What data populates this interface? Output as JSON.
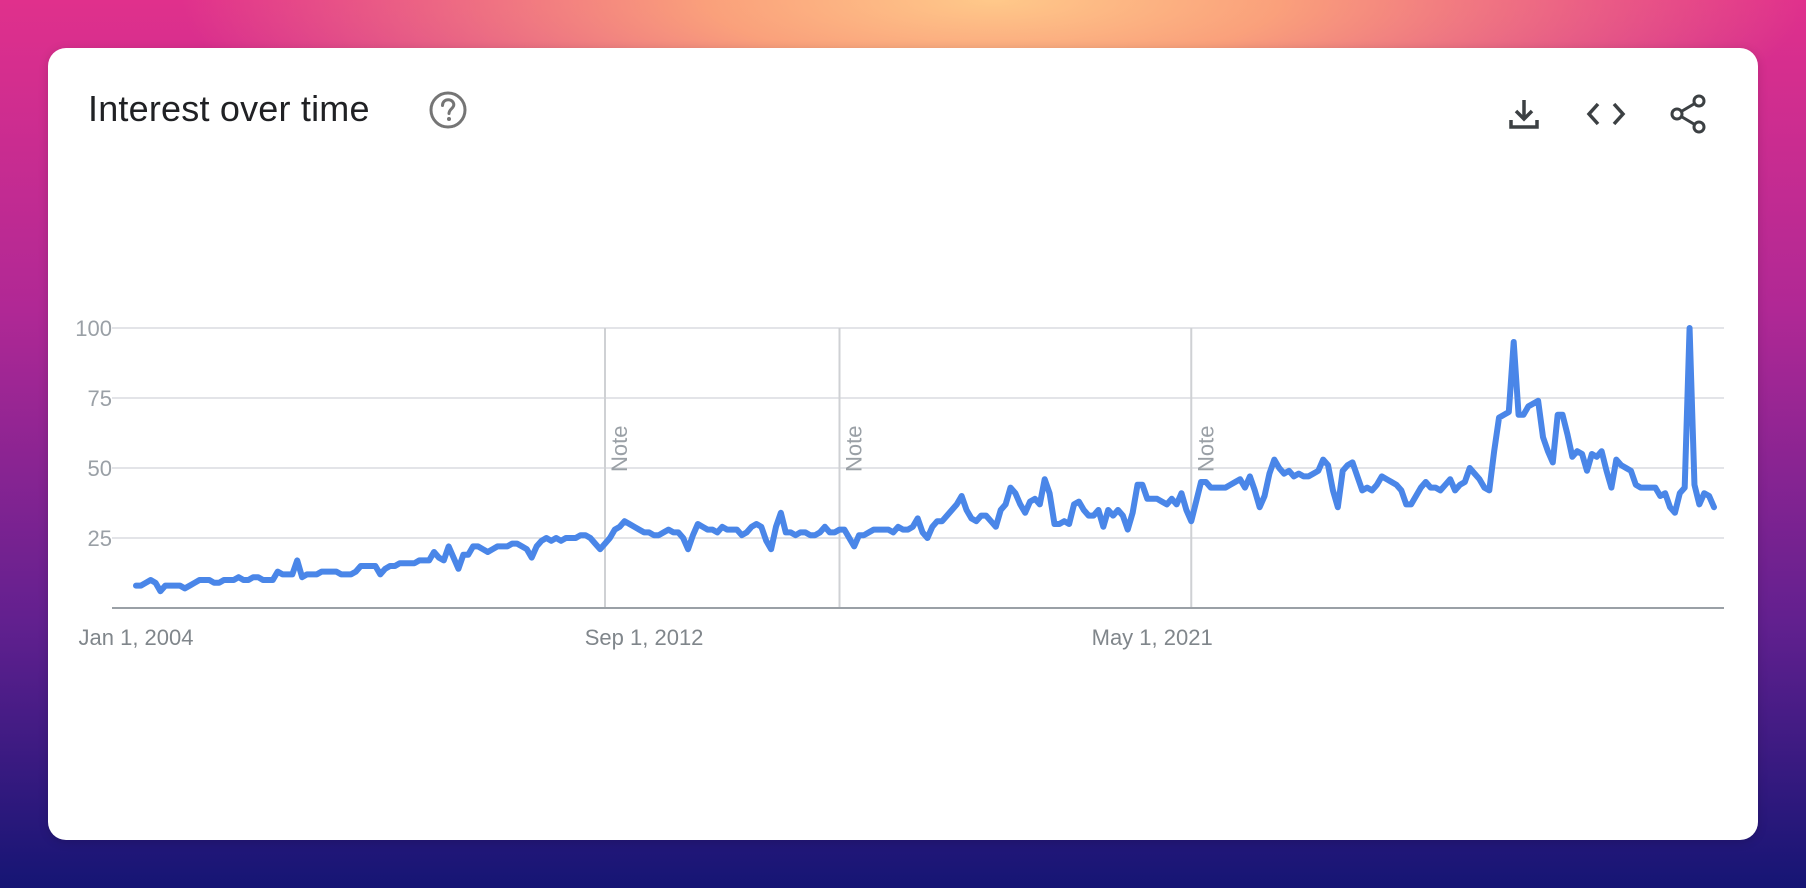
{
  "header": {
    "title": "Interest over time",
    "help_icon": "help-circle-icon",
    "actions": [
      {
        "name": "download-button",
        "icon": "download-icon"
      },
      {
        "name": "embed-button",
        "icon": "code-icon"
      },
      {
        "name": "share-button",
        "icon": "share-icon"
      }
    ]
  },
  "colors": {
    "line": "#4a86e8",
    "grid": "#dadce0",
    "axis": "#9aa0a6"
  },
  "chart_data": {
    "type": "line",
    "title": "Interest over time",
    "xlabel": "",
    "ylabel": "",
    "ylim": [
      0,
      100
    ],
    "yticks": [
      "100",
      "75",
      "50",
      "25"
    ],
    "xtick_labels": [
      "Jan 1, 2004",
      "Sep 1, 2012",
      "May 1, 2021"
    ],
    "notes": [
      {
        "label": "Note",
        "date": "2012-01"
      },
      {
        "label": "Note",
        "date": "2016-01"
      },
      {
        "label": "Note",
        "date": "2022-01"
      }
    ],
    "grid": true,
    "series": [
      {
        "start": "2004-01",
        "frequency": "monthly",
        "values": [
          8,
          8,
          9,
          10,
          9,
          6,
          8,
          8,
          8,
          8,
          7,
          8,
          9,
          10,
          10,
          10,
          9,
          9,
          10,
          10,
          10,
          11,
          10,
          10,
          11,
          11,
          10,
          10,
          10,
          13,
          12,
          12,
          12,
          17,
          11,
          12,
          12,
          12,
          13,
          13,
          13,
          13,
          12,
          12,
          12,
          13,
          15,
          15,
          15,
          15,
          12,
          14,
          15,
          15,
          16,
          16,
          16,
          16,
          17,
          17,
          17,
          20,
          18,
          17,
          22,
          18,
          14,
          19,
          19,
          22,
          22,
          21,
          20,
          21,
          22,
          22,
          22,
          23,
          23,
          22,
          21,
          18,
          22,
          24,
          25,
          24,
          25,
          24,
          25,
          25,
          25,
          26,
          26,
          25,
          23,
          21,
          23,
          25,
          28,
          29,
          31,
          30,
          29,
          28,
          27,
          27,
          26,
          26,
          27,
          28,
          27,
          27,
          25,
          21,
          26,
          30,
          29,
          28,
          28,
          27,
          29,
          28,
          28,
          28,
          26,
          27,
          29,
          30,
          29,
          24,
          21,
          29,
          34,
          27,
          27,
          26,
          27,
          27,
          26,
          26,
          27,
          29,
          27,
          27,
          28,
          28,
          25,
          22,
          26,
          26,
          27,
          28,
          28,
          28,
          28,
          27,
          29,
          28,
          28,
          29,
          32,
          27,
          25,
          29,
          31,
          31,
          33,
          35,
          37,
          40,
          35,
          32,
          31,
          33,
          33,
          31,
          29,
          35,
          37,
          43,
          41,
          37,
          34,
          38,
          39,
          37,
          46,
          41,
          30,
          30,
          31,
          30,
          37,
          38,
          35,
          33,
          33,
          35,
          29,
          35,
          33,
          35,
          33,
          28,
          34,
          44,
          44,
          39,
          39,
          39,
          38,
          37,
          39,
          37,
          41,
          35,
          31,
          38,
          45,
          45,
          43,
          43,
          43,
          43,
          44,
          45,
          46,
          43,
          47,
          42,
          36,
          40,
          48,
          53,
          50,
          48,
          49,
          47,
          48,
          47,
          47,
          48,
          49,
          53,
          51,
          42,
          36,
          49,
          51,
          52,
          47,
          42,
          43,
          42,
          44,
          47,
          46,
          45,
          44,
          42,
          37,
          37,
          40,
          43,
          45,
          43,
          43,
          42,
          44,
          46,
          42,
          44,
          45,
          50,
          48,
          46,
          43,
          42,
          56,
          68,
          69,
          70,
          95,
          69,
          69,
          72,
          73,
          74,
          61,
          56,
          52,
          69,
          69,
          62,
          54,
          56,
          55,
          49,
          55,
          54,
          56,
          49,
          43,
          53,
          51,
          50,
          49,
          44,
          43,
          43,
          43,
          43,
          40,
          41,
          36,
          34,
          41,
          43,
          100,
          44,
          37,
          41,
          40,
          36
        ]
      }
    ]
  }
}
